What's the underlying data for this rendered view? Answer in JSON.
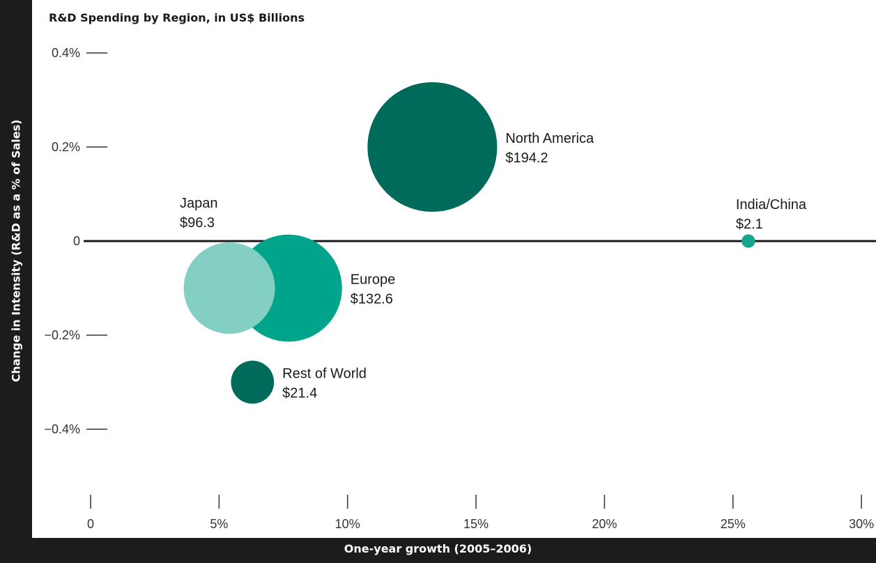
{
  "chart_data": {
    "type": "scatter",
    "title": "R&D Spending by Region, in US$ Billions",
    "xlabel": "One-year growth (2005–2006)",
    "ylabel": "Change in Intensity (R&D as a % of Sales)",
    "xlim": [
      0,
      30
    ],
    "ylim": [
      -0.5,
      0.4
    ],
    "x_ticks": [
      "0",
      "5%",
      "10%",
      "15%",
      "20%",
      "25%",
      "30%"
    ],
    "y_ticks": [
      "0.4%",
      "0.2%",
      "0",
      "−0.2%",
      "−0.4%"
    ],
    "points": [
      {
        "name": "North America",
        "value_label": "$194.2",
        "x": 13.3,
        "y": 0.2,
        "size": 194.2,
        "color": "#006b5a"
      },
      {
        "name": "Europe",
        "value_label": "$132.6",
        "x": 7.7,
        "y": -0.1,
        "size": 132.6,
        "color": "#00a48a"
      },
      {
        "name": "Japan",
        "value_label": "$96.3",
        "x": 5.4,
        "y": -0.1,
        "size": 96.3,
        "color": "#84cfc3"
      },
      {
        "name": "Rest of World",
        "value_label": "$21.4",
        "x": 6.3,
        "y": -0.3,
        "size": 21.4,
        "color": "#006b5a"
      },
      {
        "name": "India/China",
        "value_label": "$2.1",
        "x": 25.6,
        "y": 0.0,
        "size": 2.1,
        "color": "#17a58c"
      }
    ]
  }
}
